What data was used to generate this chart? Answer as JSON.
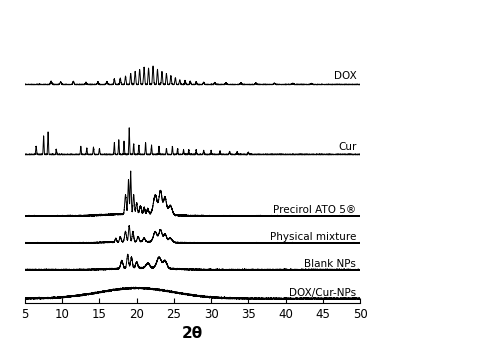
{
  "xlabel": "2θ",
  "xlim": [
    5,
    50
  ],
  "background_color": "#ffffff",
  "line_color": "#000000",
  "line_width": 0.7,
  "labels": {
    "DOX": "DOX",
    "Cur": "Cur",
    "Precirol": "Precirol ATO 5®",
    "Physical": "Physical mixture",
    "Blank": "Blank NPs",
    "DOXCur": "DOX/Cur-NPs"
  },
  "offsets": {
    "DOX": 5.2,
    "Cur": 3.5,
    "Precirol": 2.0,
    "Physical": 1.35,
    "Blank": 0.7,
    "DOXCur": 0.0
  },
  "scales": {
    "DOX": 0.45,
    "Cur": 0.65,
    "Precirol": 1.1,
    "Physical": 0.42,
    "Blank": 0.38,
    "DOXCur": 0.28
  }
}
